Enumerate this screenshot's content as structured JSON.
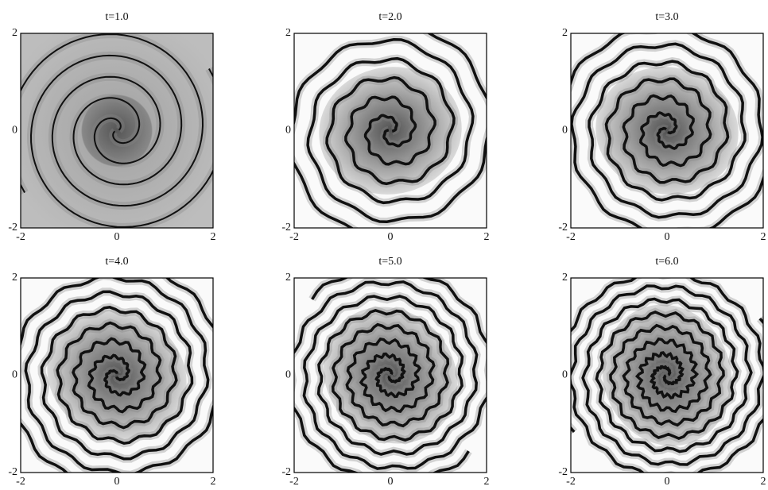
{
  "panels": [
    {
      "title": "t=1.0",
      "xtick_labels": [
        "-2",
        "0",
        "2"
      ],
      "ytick_labels": [
        "2",
        "0",
        "-2"
      ]
    },
    {
      "title": "t=2.0",
      "xtick_labels": [
        "-2",
        "0",
        "2"
      ],
      "ytick_labels": [
        "2",
        "0",
        "-2"
      ]
    },
    {
      "title": "t=3.0",
      "xtick_labels": [
        "-2",
        "0",
        "2"
      ],
      "ytick_labels": [
        "2",
        "0",
        "-2"
      ]
    },
    {
      "title": "t=4.0",
      "xtick_labels": [
        "-2",
        "0",
        "2"
      ],
      "ytick_labels": [
        "2",
        "0",
        "-2"
      ]
    },
    {
      "title": "t=5.0",
      "xtick_labels": [
        "-2",
        "0",
        "2"
      ],
      "ytick_labels": [
        "2",
        "0",
        "-2"
      ]
    },
    {
      "title": "t=6.0",
      "xtick_labels": [
        "-2",
        "0",
        "2"
      ],
      "ytick_labels": [
        "2",
        "0",
        "-2"
      ]
    }
  ]
}
